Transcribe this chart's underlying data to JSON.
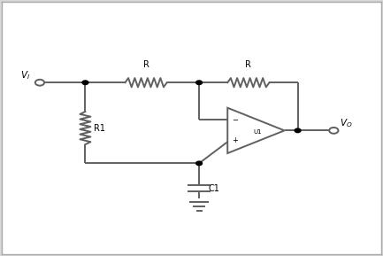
{
  "background_color": "#d8d8d8",
  "inner_bg": "#ffffff",
  "line_color": "#606060",
  "line_width": 1.4,
  "text_color": "#000000",
  "figsize": [
    4.33,
    2.89
  ],
  "dpi": 100,
  "border_color": "#aaaaaa",
  "dot_color": "#000000",
  "vi_label": "V_I",
  "vo_label": "V_O",
  "r1_label": "R1",
  "c1_label": "C1",
  "r_label": "R",
  "u1_label": "U1"
}
